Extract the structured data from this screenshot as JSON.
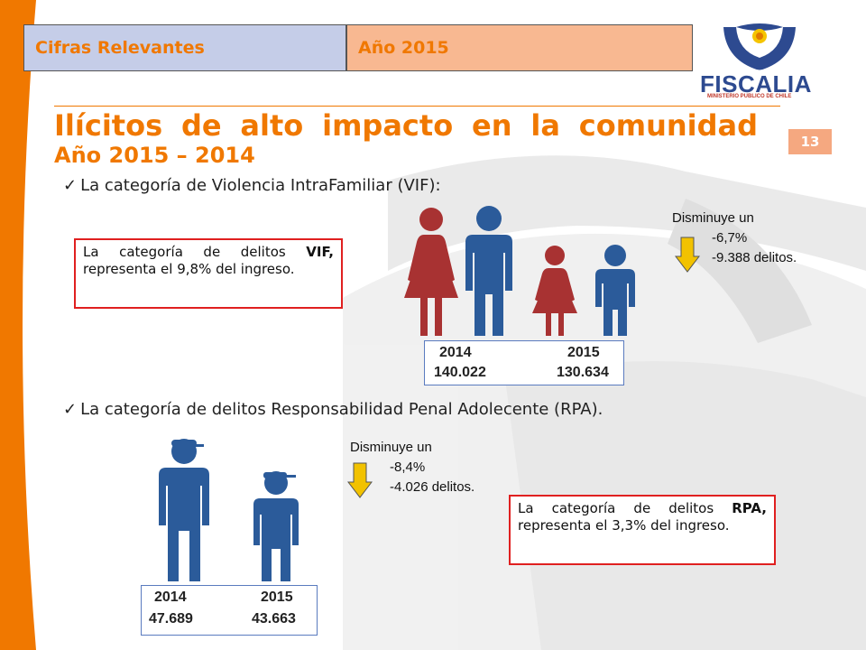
{
  "header": {
    "tab_left": "Cifras Relevantes",
    "tab_right": "Año 2015"
  },
  "logo": {
    "name": "FISCALIA",
    "tagline": "MINISTERIO PUBLICO DE CHILE"
  },
  "page_number": "13",
  "title": "Ilícitos de alto impacto en la comunidad",
  "subtitle": "Año 2015 – 2014",
  "vif": {
    "bullet_prefix": "La categoría de ",
    "bullet_bold": "Violencia IntraFamiliar (VIF):",
    "box_text_a": "La categoría de delitos ",
    "box_text_bold": "VIF,",
    "box_text_b": " representa el 9,8% del ingreso.",
    "change_label": "Disminuye un",
    "change_percent": "-6,7%",
    "change_count": "-9.388 delitos.",
    "year_a": "2014",
    "year_b": "2015",
    "value_a": "140.022",
    "value_b": "130.634"
  },
  "rpa": {
    "bullet_prefix": "La categoría de ",
    "bullet_bold": "delitos Responsabilidad Penal Adolecente (RPA).",
    "box_text_a": "La categoría de delitos ",
    "box_text_bold": "RPA,",
    "box_text_b": " representa el 3,3% del ingreso.",
    "change_label": "Disminuye un",
    "change_percent": "-8,4%",
    "change_count": "-4.026 delitos.",
    "year_a": "2014",
    "year_b": "2015",
    "value_a": "47.689",
    "value_b": "43.663"
  },
  "colors": {
    "accent": "#f07800",
    "figure_red": "#a83232",
    "figure_blue": "#2b5b9a",
    "box_border": "#e02020",
    "arrow_yellow": "#f2c200"
  }
}
